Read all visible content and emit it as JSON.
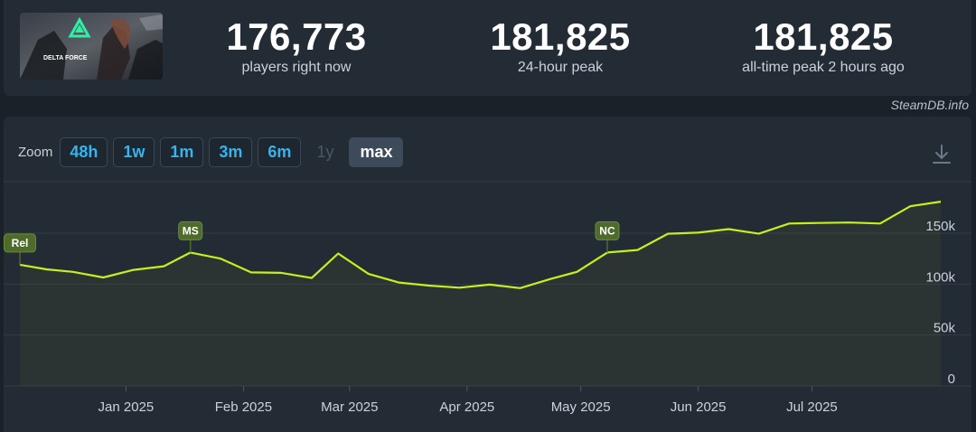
{
  "game": {
    "thumbnail_caption": "DELTA FORCE",
    "thumb_icon": "delta-force-logo"
  },
  "stats": [
    {
      "value": "176,773",
      "label": "players right now"
    },
    {
      "value": "181,825",
      "label": "24-hour peak"
    },
    {
      "value": "181,825",
      "label": "all-time peak 2 hours ago"
    }
  ],
  "credit": "SteamDB.info",
  "zoom": {
    "label": "Zoom",
    "buttons": [
      "48h",
      "1w",
      "1m",
      "3m",
      "6m",
      "1y",
      "max"
    ],
    "active": "max",
    "disabled": [
      "1y"
    ]
  },
  "colors": {
    "line": "#c6f01b",
    "accent": "#33b5f0",
    "marker_bg": "#4e6b2c"
  },
  "chart_data": {
    "type": "line",
    "title": "",
    "xlabel": "",
    "ylabel": "",
    "x_ticks": [
      "Jan 2025",
      "Feb 2025",
      "Mar 2025",
      "Apr 2025",
      "May 2025",
      "Jun 2025",
      "Jul 2025"
    ],
    "y_ticks": [
      "0",
      "50k",
      "100k",
      "150k"
    ],
    "ylim": [
      0,
      200000
    ],
    "grid": true,
    "series": [
      {
        "points": [
          [
            "2024-12-04",
            119000
          ],
          [
            "2024-12-11",
            114500
          ],
          [
            "2024-12-18",
            112000
          ],
          [
            "2024-12-26",
            106500
          ],
          [
            "2025-01-03",
            114000
          ],
          [
            "2025-01-11",
            117500
          ],
          [
            "2025-01-18",
            131000
          ],
          [
            "2025-01-26",
            125000
          ],
          [
            "2025-02-03",
            111500
          ],
          [
            "2025-02-11",
            111000
          ],
          [
            "2025-02-19",
            106000
          ],
          [
            "2025-02-26",
            130000
          ],
          [
            "2025-03-06",
            110000
          ],
          [
            "2025-03-14",
            101500
          ],
          [
            "2025-03-22",
            98500
          ],
          [
            "2025-03-30",
            96500
          ],
          [
            "2025-04-07",
            99500
          ],
          [
            "2025-04-15",
            96000
          ],
          [
            "2025-04-23",
            105000
          ],
          [
            "2025-04-30",
            112000
          ],
          [
            "2025-05-08",
            131000
          ],
          [
            "2025-05-16",
            133500
          ],
          [
            "2025-05-24",
            149500
          ],
          [
            "2025-06-01",
            150500
          ],
          [
            "2025-06-09",
            154000
          ],
          [
            "2025-06-17",
            149500
          ],
          [
            "2025-06-25",
            159500
          ],
          [
            "2025-07-03",
            160000
          ],
          [
            "2025-07-11",
            160500
          ],
          [
            "2025-07-19",
            159500
          ],
          [
            "2025-07-27",
            176500
          ],
          [
            "2025-08-04",
            181000
          ]
        ]
      }
    ],
    "markers": [
      {
        "label": "Rel",
        "x": "2024-12-04",
        "y": 119000
      },
      {
        "label": "MS",
        "x": "2025-01-18",
        "y": 131000
      },
      {
        "label": "NC",
        "x": "2025-05-08",
        "y": 131000
      }
    ]
  }
}
